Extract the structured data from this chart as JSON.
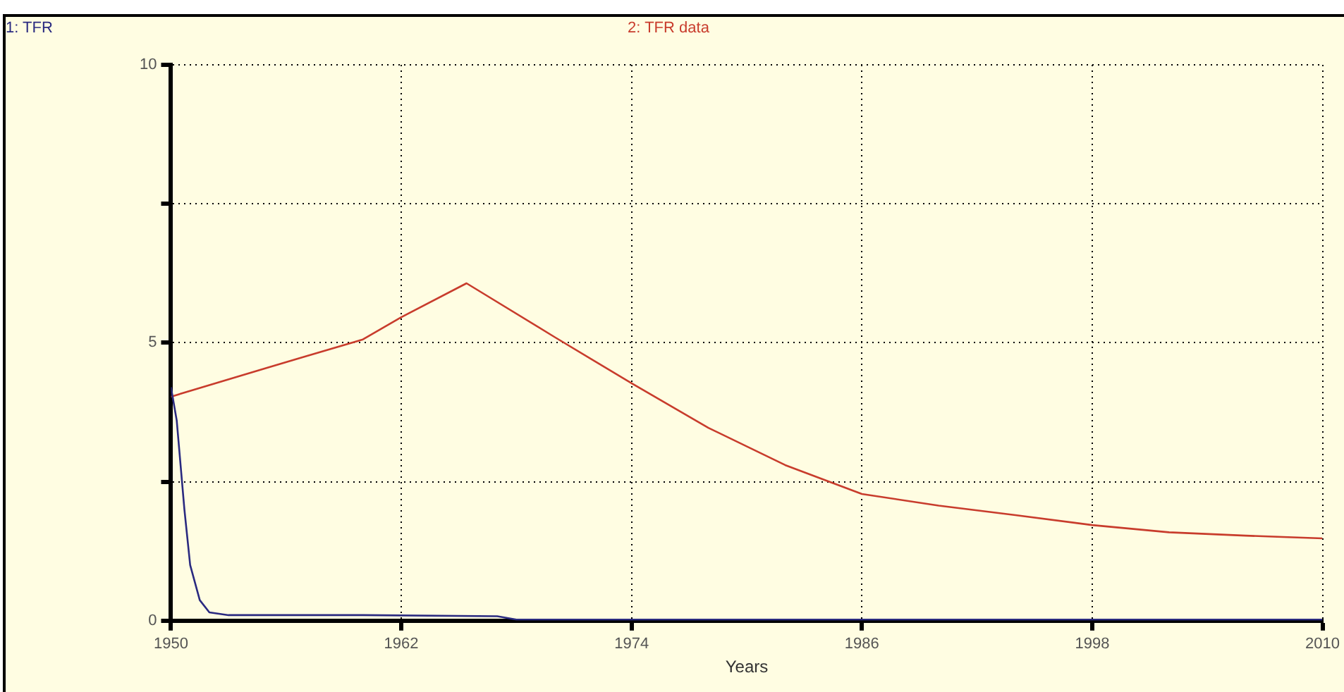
{
  "chart_data": {
    "type": "line",
    "xlabel": "Years",
    "xlim": [
      1950,
      2010
    ],
    "xticks": [
      1950,
      1962,
      1974,
      1986,
      1998,
      2010
    ],
    "ylim": [
      0,
      10
    ],
    "yticks": [
      0,
      {
        "value": 2.5,
        "label": null
      },
      5,
      {
        "value": 7.5,
        "label": null
      },
      10
    ],
    "grid": true,
    "legend": "top",
    "marker": "none",
    "line_style": "solid",
    "series": [
      {
        "name": "1: TFR",
        "color": "#2a2a80",
        "x": [
          1950,
          1950.3,
          1950.7,
          1951,
          1951.5,
          1952,
          1953,
          1960,
          1967,
          1968,
          2010
        ],
        "values": [
          4.2,
          3.6,
          2.0,
          1.0,
          0.37,
          0.15,
          0.1,
          0.1,
          0.08,
          0.02,
          0.02
        ]
      },
      {
        "name": "2: TFR data",
        "color": "#c83c2c",
        "x": [
          1950,
          1955,
          1960,
          1962,
          1965.4,
          1970,
          1974,
          1978,
          1982,
          1986,
          1990,
          1994,
          1998,
          2002,
          2006,
          2010
        ],
        "values": [
          4.03,
          4.55,
          5.06,
          5.46,
          6.07,
          5.1,
          4.27,
          3.47,
          2.8,
          2.28,
          2.07,
          1.9,
          1.72,
          1.59,
          1.53,
          1.48
        ]
      }
    ]
  }
}
